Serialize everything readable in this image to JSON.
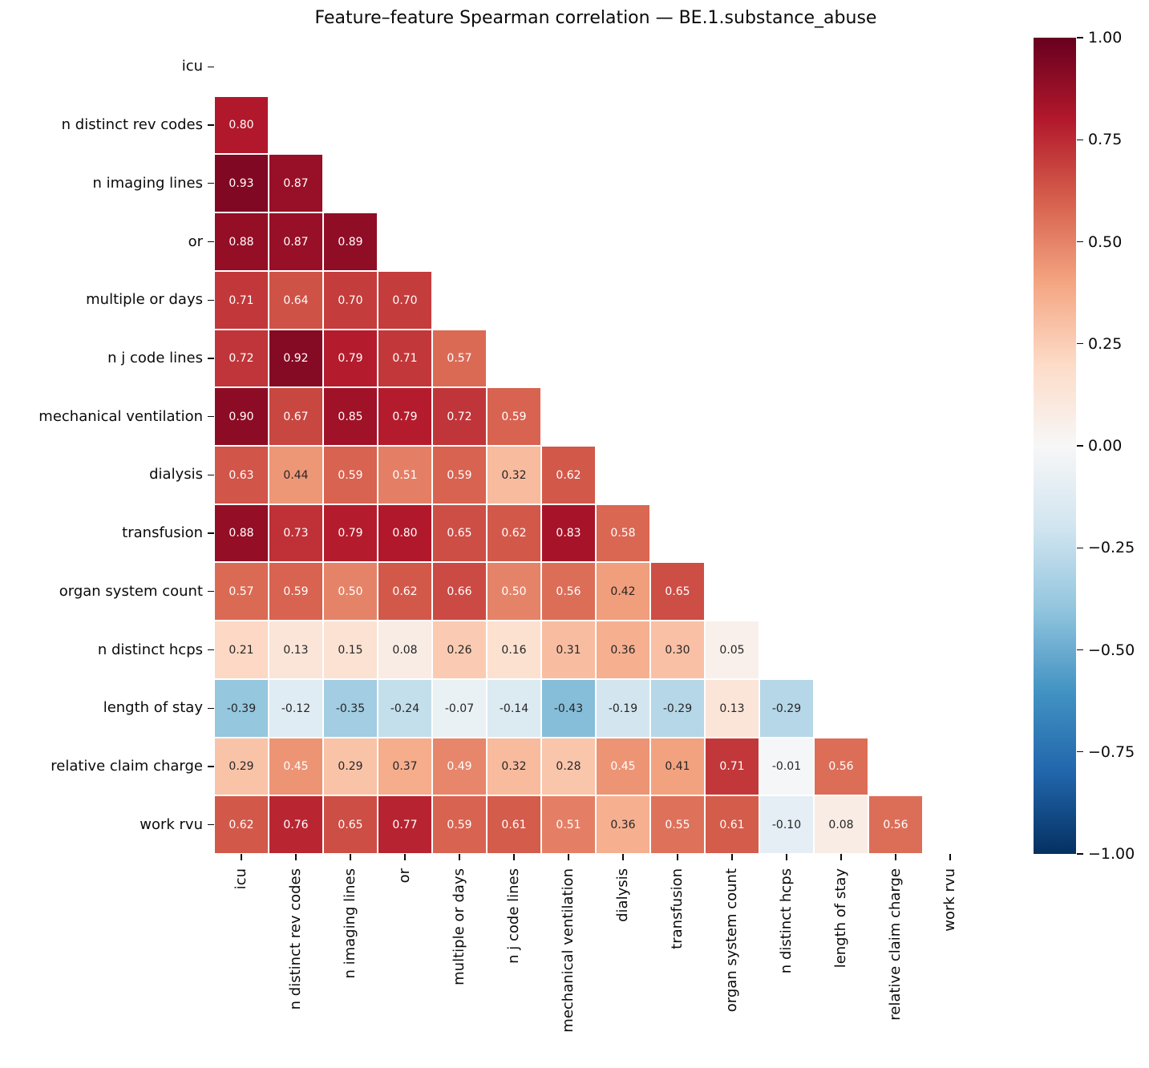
{
  "chart_data": {
    "type": "heatmap",
    "title": "Feature–feature Spearman correlation — BE.1.substance_abuse",
    "labels": [
      "icu",
      "n distinct rev codes",
      "n imaging lines",
      "or",
      "multiple or days",
      "n j code lines",
      "mechanical ventilation",
      "dialysis",
      "transfusion",
      "organ system count",
      "n distinct hcps",
      "length of stay",
      "relative claim charge",
      "work rvu"
    ],
    "matrix_lower_triangle": [
      [],
      [
        0.8
      ],
      [
        0.93,
        0.87
      ],
      [
        0.88,
        0.87,
        0.89
      ],
      [
        0.71,
        0.64,
        0.7,
        0.7
      ],
      [
        0.72,
        0.92,
        0.79,
        0.71,
        0.57
      ],
      [
        0.9,
        0.67,
        0.85,
        0.79,
        0.72,
        0.59
      ],
      [
        0.63,
        0.44,
        0.59,
        0.51,
        0.59,
        0.32,
        0.62
      ],
      [
        0.88,
        0.73,
        0.79,
        0.8,
        0.65,
        0.62,
        0.83,
        0.58
      ],
      [
        0.57,
        0.59,
        0.5,
        0.62,
        0.66,
        0.5,
        0.56,
        0.42,
        0.65
      ],
      [
        0.21,
        0.13,
        0.15,
        0.08,
        0.26,
        0.16,
        0.31,
        0.36,
        0.3,
        0.05
      ],
      [
        -0.39,
        -0.12,
        -0.35,
        -0.24,
        -0.07,
        -0.14,
        -0.43,
        -0.19,
        -0.29,
        0.13,
        -0.29
      ],
      [
        0.29,
        0.45,
        0.29,
        0.37,
        0.49,
        0.32,
        0.28,
        0.45,
        0.41,
        0.71,
        -0.01,
        0.56
      ],
      [
        0.62,
        0.76,
        0.65,
        0.77,
        0.59,
        0.61,
        0.51,
        0.36,
        0.55,
        0.61,
        -0.1,
        0.08,
        0.56
      ]
    ],
    "mask": "upper triangle and diagonal hidden",
    "annotation_format": ".2f",
    "grid_line_color": "#ffffff",
    "background": "#ffffff",
    "colormap": {
      "name": "RdBu_r",
      "stops_low_to_high": [
        "#053061",
        "#2166ac",
        "#4393c3",
        "#92c5de",
        "#d1e5f0",
        "#f7f7f7",
        "#fddbc7",
        "#f4a582",
        "#d6604d",
        "#b2182b",
        "#67001f"
      ],
      "annot_dark": "#262626",
      "annot_light": "#ffffff",
      "luminance_threshold": 0.408
    },
    "colorbar": {
      "vmin": -1,
      "vmax": 1,
      "position": "right",
      "tick_labels": [
        "1.00",
        "0.75",
        "0.50",
        "0.25",
        "0.00",
        "−0.25",
        "−0.50",
        "−0.75",
        "−1.00"
      ]
    }
  }
}
